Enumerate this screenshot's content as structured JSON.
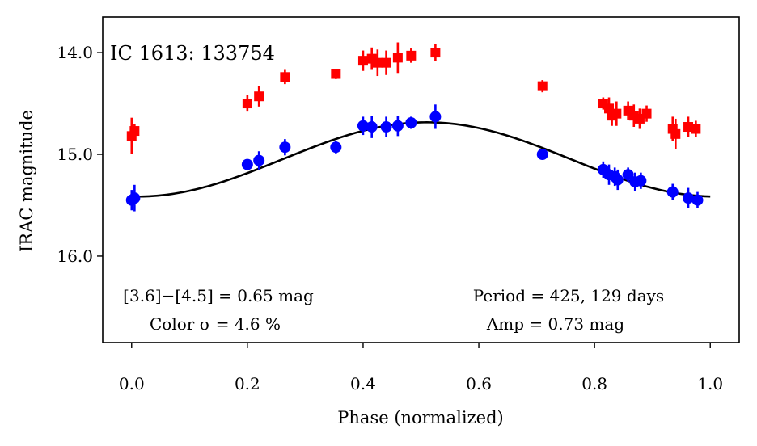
{
  "chart_data": {
    "type": "scatter",
    "title": "IC 1613:  133754",
    "xlabel": "Phase (normalized)",
    "ylabel": "IRAC magnitude",
    "xlim": [
      -0.05,
      1.05
    ],
    "ylim": [
      16.85,
      13.65
    ],
    "y_inverted": true,
    "grid": false,
    "xticks": [
      0.0,
      0.2,
      0.4,
      0.6,
      0.8,
      1.0
    ],
    "xtick_labels": [
      "0.0",
      "0.2",
      "0.4",
      "0.6",
      "0.8",
      "1.0"
    ],
    "yticks": [
      14.0,
      15.0,
      16.0
    ],
    "ytick_labels": [
      "14.0",
      "15.0",
      "16.0"
    ],
    "annotations": {
      "color_line": "[3.6]−[4.5] = 0.65 mag",
      "color_sigma": "Color σ = 4.6 %",
      "period": "Period = 425, 129 days",
      "amp": "Amp = 0.73 mag"
    },
    "series": [
      {
        "color": "#ff0000",
        "marker": "square",
        "points": [
          {
            "x": 0.0,
            "y": 14.82,
            "err": 0.18
          },
          {
            "x": 0.005,
            "y": 14.77,
            "err": 0.07
          },
          {
            "x": 0.2,
            "y": 14.5,
            "err": 0.08
          },
          {
            "x": 0.22,
            "y": 14.43,
            "err": 0.1
          },
          {
            "x": 0.265,
            "y": 14.24,
            "err": 0.07
          },
          {
            "x": 0.353,
            "y": 14.21,
            "err": 0.05
          },
          {
            "x": 0.4,
            "y": 14.08,
            "err": 0.1
          },
          {
            "x": 0.415,
            "y": 14.06,
            "err": 0.11
          },
          {
            "x": 0.425,
            "y": 14.1,
            "err": 0.13
          },
          {
            "x": 0.44,
            "y": 14.1,
            "err": 0.12
          },
          {
            "x": 0.46,
            "y": 14.05,
            "err": 0.15
          },
          {
            "x": 0.483,
            "y": 14.03,
            "err": 0.07
          },
          {
            "x": 0.525,
            "y": 14.0,
            "err": 0.08
          },
          {
            "x": 0.71,
            "y": 14.33,
            "err": 0.06
          },
          {
            "x": 0.815,
            "y": 14.5,
            "err": 0.06
          },
          {
            "x": 0.825,
            "y": 14.55,
            "err": 0.11
          },
          {
            "x": 0.83,
            "y": 14.62,
            "err": 0.1
          },
          {
            "x": 0.838,
            "y": 14.6,
            "err": 0.12
          },
          {
            "x": 0.858,
            "y": 14.57,
            "err": 0.09
          },
          {
            "x": 0.868,
            "y": 14.62,
            "err": 0.11
          },
          {
            "x": 0.878,
            "y": 14.65,
            "err": 0.1
          },
          {
            "x": 0.89,
            "y": 14.6,
            "err": 0.08
          },
          {
            "x": 0.935,
            "y": 14.75,
            "err": 0.12
          },
          {
            "x": 0.94,
            "y": 14.8,
            "err": 0.15
          },
          {
            "x": 0.962,
            "y": 14.73,
            "err": 0.1
          },
          {
            "x": 0.975,
            "y": 14.75,
            "err": 0.08
          }
        ]
      },
      {
        "color": "#0000ff",
        "marker": "circle",
        "points": [
          {
            "x": 0.0,
            "y": 15.45,
            "err": 0.1
          },
          {
            "x": 0.005,
            "y": 15.43,
            "err": 0.13
          },
          {
            "x": 0.2,
            "y": 15.1,
            "err": 0.05
          },
          {
            "x": 0.22,
            "y": 15.06,
            "err": 0.09
          },
          {
            "x": 0.265,
            "y": 14.93,
            "err": 0.08
          },
          {
            "x": 0.353,
            "y": 14.93,
            "err": 0.06
          },
          {
            "x": 0.4,
            "y": 14.72,
            "err": 0.09
          },
          {
            "x": 0.415,
            "y": 14.73,
            "err": 0.11
          },
          {
            "x": 0.44,
            "y": 14.73,
            "err": 0.1
          },
          {
            "x": 0.46,
            "y": 14.72,
            "err": 0.1
          },
          {
            "x": 0.483,
            "y": 14.69,
            "err": 0.06
          },
          {
            "x": 0.525,
            "y": 14.63,
            "err": 0.12
          },
          {
            "x": 0.71,
            "y": 15.0,
            "err": 0.04
          },
          {
            "x": 0.815,
            "y": 15.15,
            "err": 0.08
          },
          {
            "x": 0.825,
            "y": 15.2,
            "err": 0.1
          },
          {
            "x": 0.835,
            "y": 15.22,
            "err": 0.09
          },
          {
            "x": 0.84,
            "y": 15.25,
            "err": 0.1
          },
          {
            "x": 0.858,
            "y": 15.2,
            "err": 0.07
          },
          {
            "x": 0.87,
            "y": 15.27,
            "err": 0.09
          },
          {
            "x": 0.88,
            "y": 15.26,
            "err": 0.08
          },
          {
            "x": 0.935,
            "y": 15.37,
            "err": 0.08
          },
          {
            "x": 0.962,
            "y": 15.43,
            "err": 0.1
          },
          {
            "x": 0.978,
            "y": 15.45,
            "err": 0.08
          }
        ]
      }
    ],
    "fit_curve": {
      "color": "#000000",
      "type": "sinusoid",
      "mean_mag": 15.05,
      "semi_amplitude": 0.365,
      "phase_of_min_mag": 0.51
    }
  }
}
